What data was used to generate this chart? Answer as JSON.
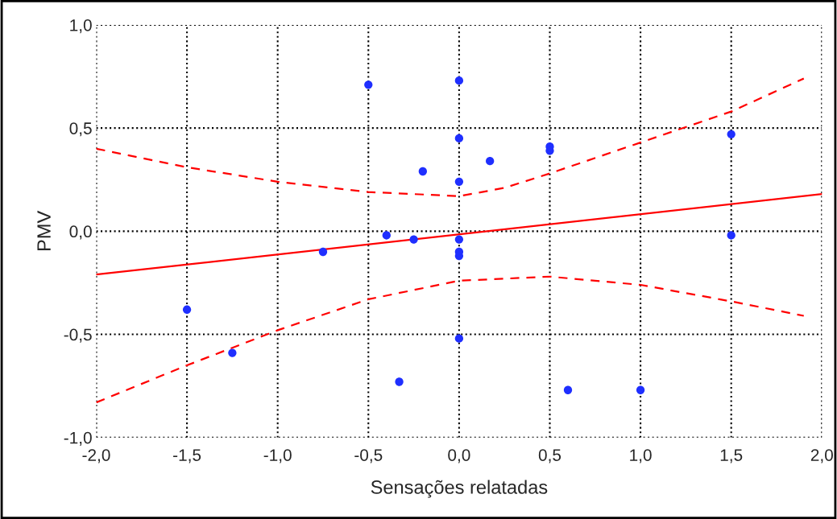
{
  "chart_data": {
    "type": "scatter",
    "xlabel": "Sensações relatadas",
    "ylabel": "PMV",
    "xlim": [
      -2.0,
      2.0
    ],
    "ylim": [
      -1.0,
      1.0
    ],
    "xticks": [
      {
        "value": -2.0,
        "label": "-2,0"
      },
      {
        "value": -1.5,
        "label": "-1,5"
      },
      {
        "value": -1.0,
        "label": "-1,0"
      },
      {
        "value": -0.5,
        "label": "-0,5"
      },
      {
        "value": 0.0,
        "label": "0,0"
      },
      {
        "value": 0.5,
        "label": "0,5"
      },
      {
        "value": 1.0,
        "label": "1,0"
      },
      {
        "value": 1.5,
        "label": "1,5"
      },
      {
        "value": 2.0,
        "label": "2,0"
      }
    ],
    "yticks": [
      {
        "value": -1.0,
        "label": "-1,0"
      },
      {
        "value": -0.5,
        "label": "-0,5"
      },
      {
        "value": 0.0,
        "label": "0,0"
      },
      {
        "value": 0.5,
        "label": "0,5"
      },
      {
        "value": 1.0,
        "label": "1,0"
      }
    ],
    "grid": true,
    "series": [
      {
        "color": "#1f2fff",
        "marker": "circle",
        "x": [
          -1.5,
          -1.25,
          -0.75,
          -0.5,
          -0.4,
          -0.33,
          -0.25,
          -0.2,
          0,
          0,
          0,
          0,
          0,
          0,
          0,
          0.17,
          0.5,
          0.5,
          0.6,
          1.0,
          1.5,
          1.5
        ],
        "values": [
          -0.38,
          -0.59,
          -0.1,
          0.71,
          -0.02,
          -0.73,
          -0.04,
          0.29,
          0.73,
          0.45,
          0.24,
          -0.04,
          -0.1,
          -0.12,
          -0.52,
          0.34,
          0.41,
          0.39,
          -0.77,
          -0.77,
          0.47,
          -0.02
        ]
      },
      {
        "type": "line",
        "color": "#ff0000",
        "line_style": "solid",
        "x": [
          -2.0,
          2.0
        ],
        "values": [
          -0.21,
          0.18
        ]
      },
      {
        "type": "line",
        "color": "#ff0000",
        "line_style": "dashed",
        "x": [
          -2.0,
          -1.5,
          -1.0,
          -0.5,
          0.0,
          0.25,
          0.5,
          1.0,
          1.5,
          1.9
        ],
        "values": [
          0.4,
          0.31,
          0.24,
          0.19,
          0.17,
          0.21,
          0.28,
          0.43,
          0.58,
          0.74
        ]
      },
      {
        "type": "line",
        "color": "#ff0000",
        "line_style": "dashed",
        "x": [
          -2.0,
          -1.5,
          -1.0,
          -0.5,
          0.0,
          0.5,
          1.0,
          1.5,
          1.9
        ],
        "values": [
          -0.83,
          -0.65,
          -0.48,
          -0.33,
          -0.24,
          -0.22,
          -0.26,
          -0.34,
          -0.41
        ]
      }
    ]
  }
}
